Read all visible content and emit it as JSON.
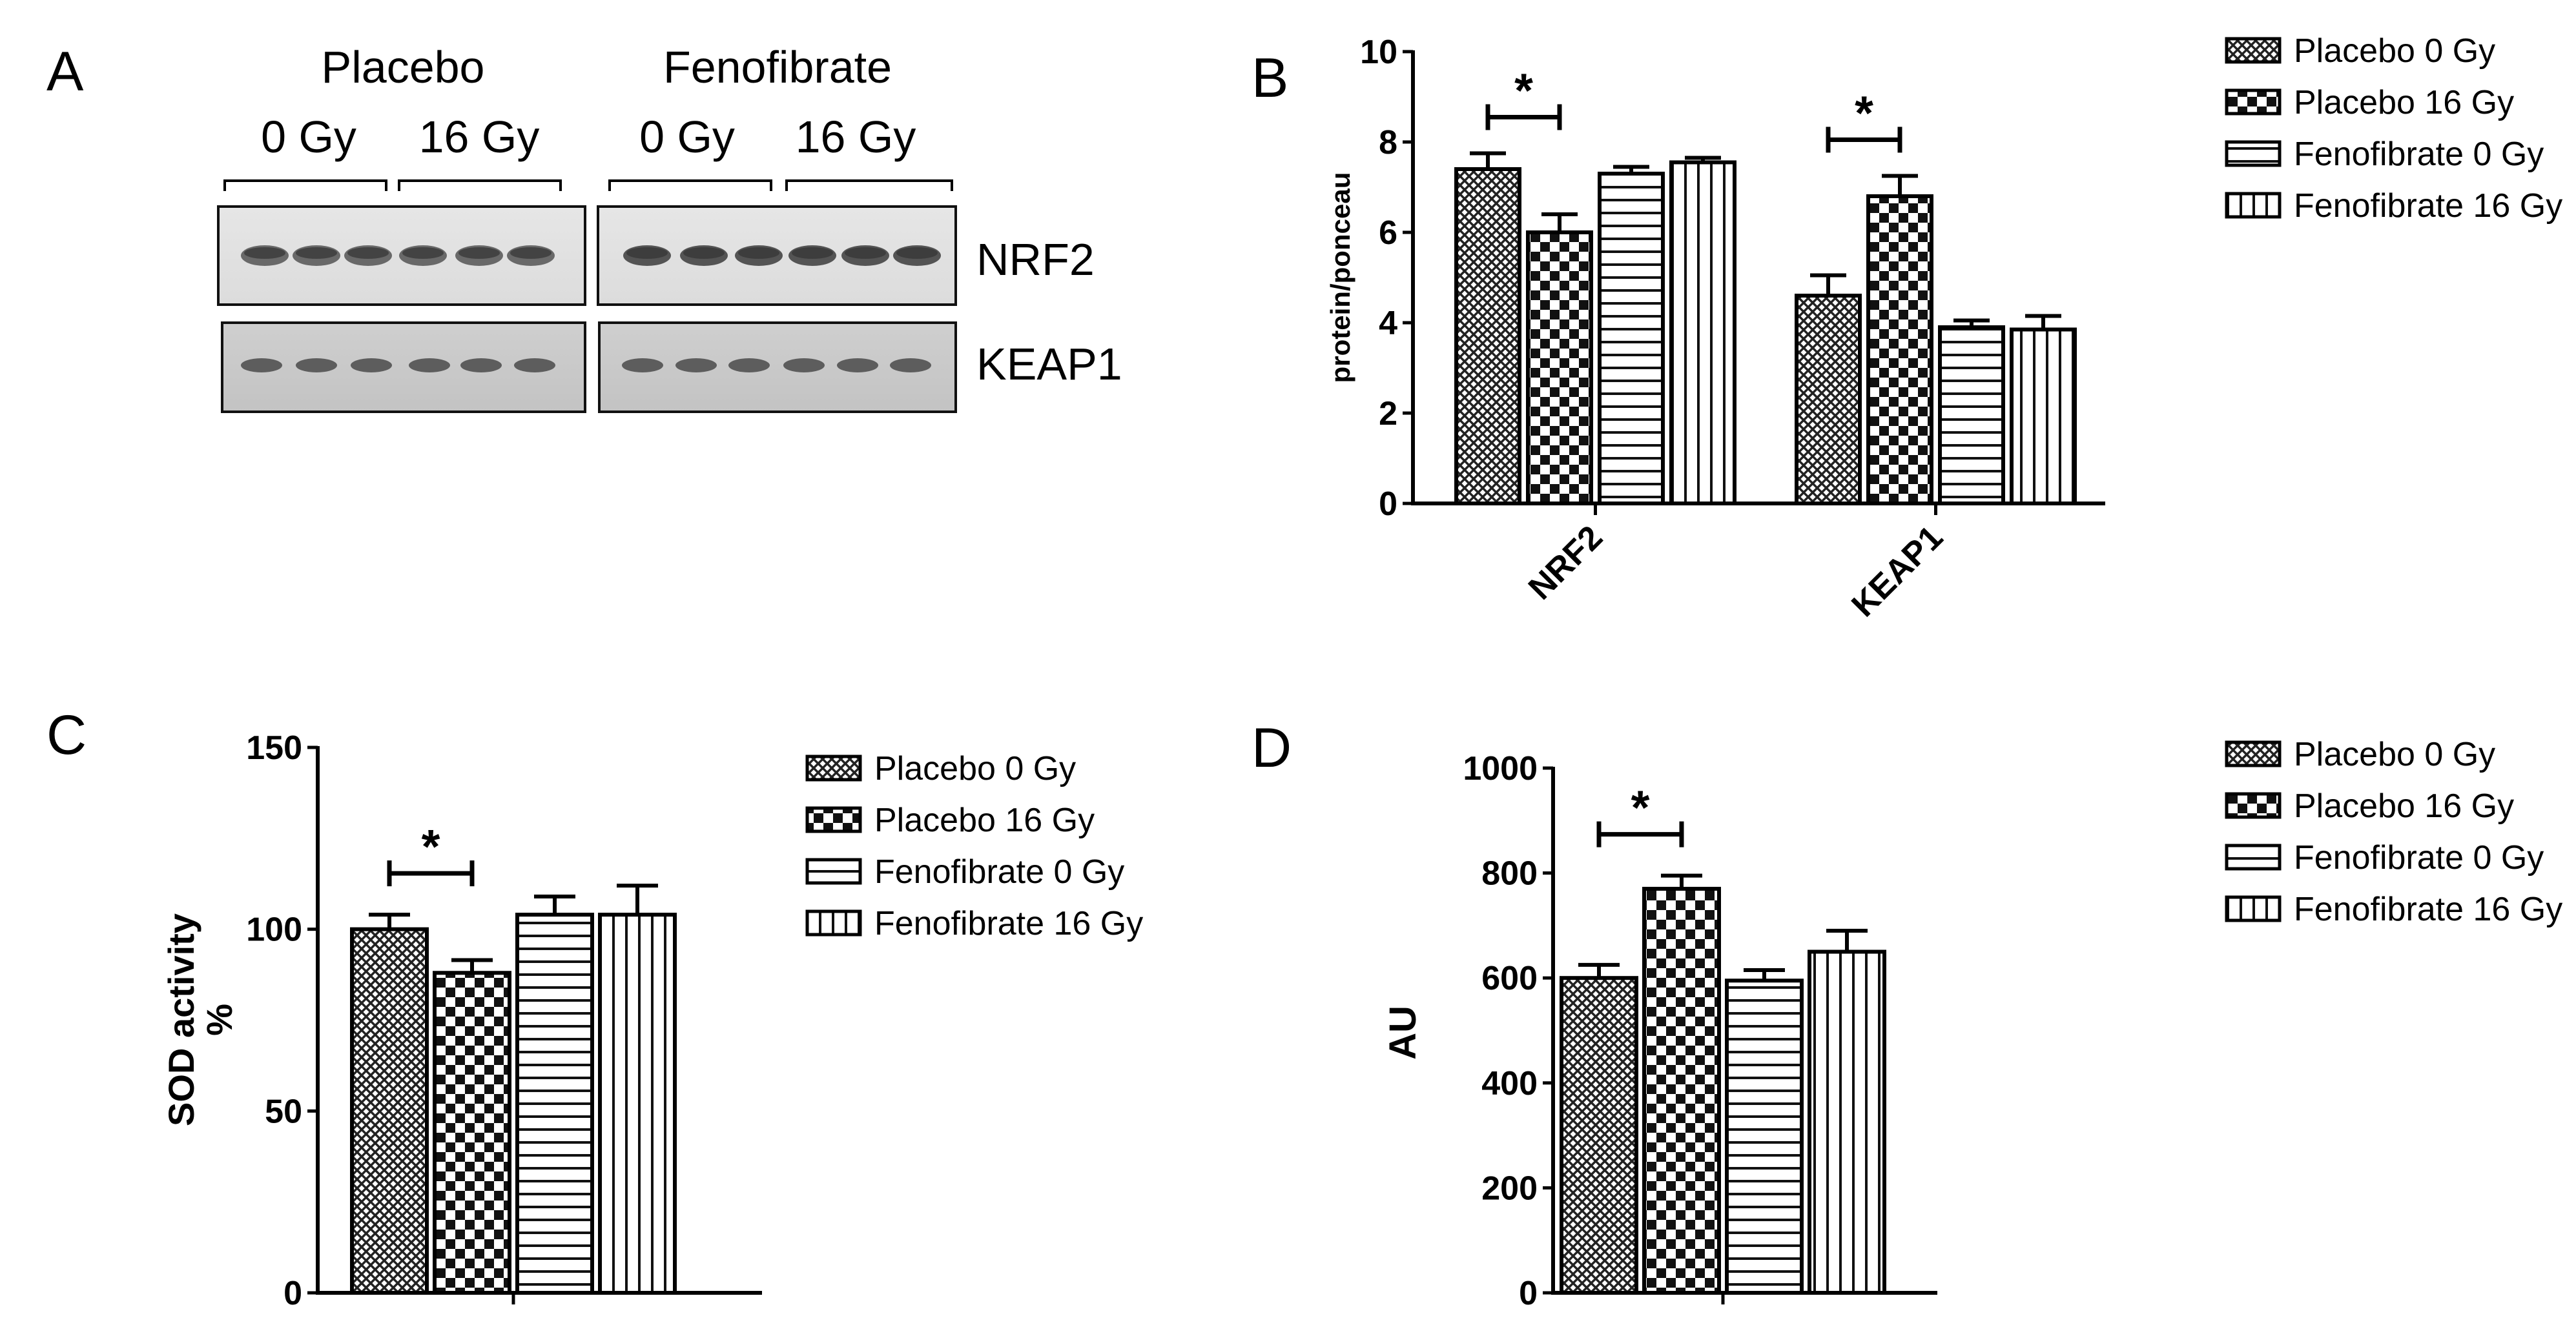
{
  "panel_labels": [
    "A",
    "B",
    "C",
    "D"
  ],
  "blot": {
    "groups": [
      "Placebo",
      "Fenofibrate"
    ],
    "doses": [
      "0 Gy",
      "16 Gy",
      "0 Gy",
      "16 Gy"
    ],
    "rows": [
      "NRF2",
      "KEAP1"
    ]
  },
  "legend_entries": [
    "Placebo 0 Gy",
    "Placebo 16 Gy",
    "Fenofibrate 0 Gy",
    "Fenofibrate 16 Gy"
  ],
  "chart_data": [
    {
      "panel": "B",
      "type": "bar",
      "categories": [
        "NRF2",
        "KEAP1"
      ],
      "series": [
        {
          "name": "Placebo 0 Gy",
          "values": [
            7.4,
            4.6
          ],
          "errors": [
            0.35,
            0.45
          ]
        },
        {
          "name": "Placebo 16 Gy",
          "values": [
            6.0,
            6.8
          ],
          "errors": [
            0.4,
            0.45
          ]
        },
        {
          "name": "Fenofibrate 0 Gy",
          "values": [
            7.3,
            3.9
          ],
          "errors": [
            0.15,
            0.15
          ]
        },
        {
          "name": "Fenofibrate 16 Gy",
          "values": [
            7.55,
            3.85
          ],
          "errors": [
            0.1,
            0.3
          ]
        }
      ],
      "ylabel": "protein/ponceau",
      "xlabel": "",
      "ylim": [
        0,
        10
      ],
      "yticks": [
        0,
        2,
        4,
        6,
        8,
        10
      ],
      "significance": [
        {
          "category": "NRF2",
          "from": "Placebo 0 Gy",
          "to": "Placebo 16 Gy",
          "label": "*"
        },
        {
          "category": "KEAP1",
          "from": "Placebo 0 Gy",
          "to": "Placebo 16 Gy",
          "label": "*"
        }
      ],
      "legend": "top-right"
    },
    {
      "panel": "C",
      "type": "bar",
      "categories": [
        ""
      ],
      "series": [
        {
          "name": "Placebo 0 Gy",
          "values": [
            100
          ],
          "errors": [
            4
          ]
        },
        {
          "name": "Placebo 16 Gy",
          "values": [
            88
          ],
          "errors": [
            3.5
          ]
        },
        {
          "name": "Fenofibrate 0 Gy",
          "values": [
            104
          ],
          "errors": [
            5
          ]
        },
        {
          "name": "Fenofibrate 16 Gy",
          "values": [
            104
          ],
          "errors": [
            8
          ]
        }
      ],
      "ylabel": "SOD activity %",
      "ylabel_lines": [
        "SOD activity",
        "%"
      ],
      "xlabel": "",
      "ylim": [
        0,
        150
      ],
      "yticks": [
        0,
        50,
        100,
        150
      ],
      "significance": [
        {
          "category": "",
          "from": "Placebo 0 Gy",
          "to": "Placebo 16 Gy",
          "label": "*"
        }
      ],
      "legend": "right"
    },
    {
      "panel": "D",
      "type": "bar",
      "categories": [
        ""
      ],
      "series": [
        {
          "name": "Placebo 0 Gy",
          "values": [
            600
          ],
          "errors": [
            25
          ]
        },
        {
          "name": "Placebo 16 Gy",
          "values": [
            770
          ],
          "errors": [
            25
          ]
        },
        {
          "name": "Fenofibrate 0 Gy",
          "values": [
            595
          ],
          "errors": [
            20
          ]
        },
        {
          "name": "Fenofibrate 16 Gy",
          "values": [
            650
          ],
          "errors": [
            40
          ]
        }
      ],
      "ylabel": "AU",
      "xlabel": "",
      "ylim": [
        0,
        1000
      ],
      "yticks": [
        0,
        200,
        400,
        600,
        800,
        1000
      ],
      "significance": [
        {
          "category": "",
          "from": "Placebo 0 Gy",
          "to": "Placebo 16 Gy",
          "label": "*"
        }
      ],
      "legend": "top-right"
    }
  ]
}
